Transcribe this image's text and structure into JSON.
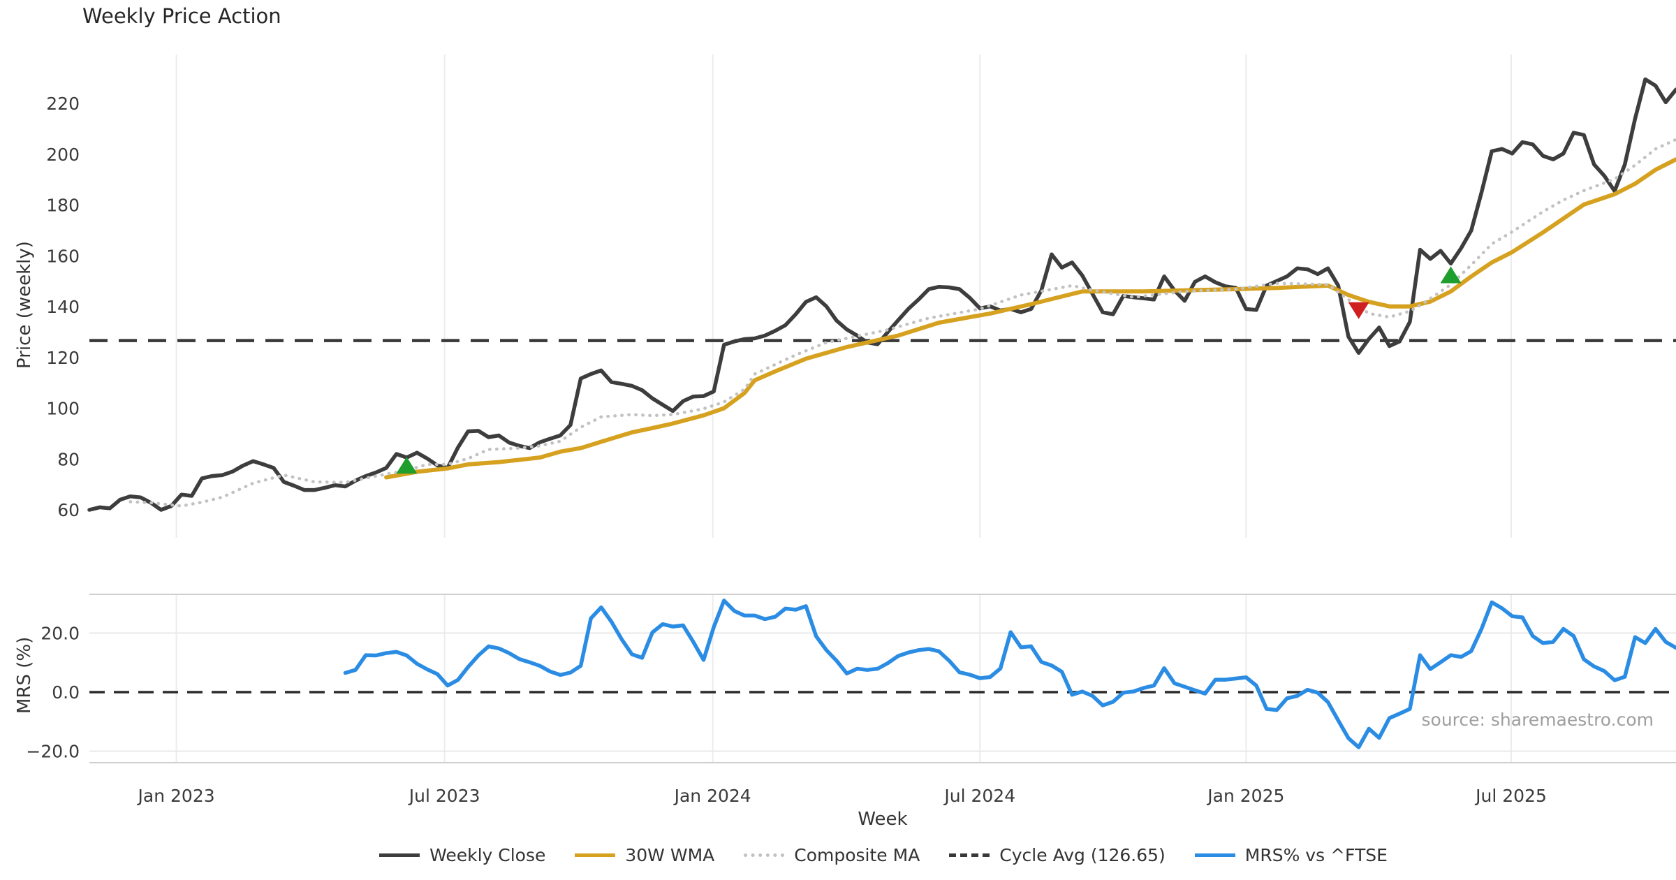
{
  "title": "Weekly Price Action",
  "source_note": "source: sharemaestro.com",
  "axes": {
    "price": {
      "ylabel": "Price (weekly)",
      "yticks": [
        60,
        80,
        100,
        120,
        140,
        160,
        180,
        200,
        220
      ]
    },
    "mrs": {
      "ylabel": "MRS (%)",
      "ytick_labels": [
        "20.0",
        "0.0",
        "−20.0"
      ],
      "ytick_values": [
        20,
        0,
        -20
      ]
    },
    "xlabel": "Week",
    "xtick_labels": [
      "Jan 2023",
      "Jul 2023",
      "Jan 2024",
      "Jul 2024",
      "Jan 2025",
      "Jul 2025"
    ],
    "xtick_weeks": [
      8.5,
      34.7,
      60.9,
      87.0,
      113.0,
      138.9
    ]
  },
  "legend": {
    "items": [
      {
        "label": "Weekly Close",
        "color": "#3d3d3d",
        "style": "solid"
      },
      {
        "label": "30W WMA",
        "color": "#d6a11f",
        "style": "solid"
      },
      {
        "label": "Composite MA",
        "color": "#c2c2c2",
        "style": "dotted"
      },
      {
        "label": "Cycle Avg (126.65)",
        "color": "#383838",
        "style": "dashed"
      },
      {
        "label": "MRS% vs ^FTSE",
        "color": "#2b8ce4",
        "style": "solid"
      }
    ]
  },
  "chart_data": {
    "type": "line",
    "x_unit": "week index; week 0 = first plotted week (about Nov 2022); 26 weeks per half-year x tick",
    "xlim": [
      0,
      155
    ],
    "price_ylim": [
      49.0,
      239.3
    ],
    "mrs_ylim": [
      -23.9,
      33.1
    ],
    "cycle_avg": 126.65,
    "grid": "vertical gridlines at each half-year tick; mrs panel has light gridlines at +20 and -20 and a dashed zero line",
    "series": [
      {
        "name": "Weekly Close",
        "panel": "price",
        "color": "#3d3d3d",
        "style": "solid",
        "width": 5.5,
        "x_start": 0,
        "x_step": 1,
        "y": [
          60.0,
          61.0,
          60.6,
          64.0,
          65.3,
          64.9,
          62.8,
          60.0,
          61.5,
          66.0,
          65.5,
          72.4,
          73.3,
          73.7,
          75.1,
          77.4,
          79.2,
          77.9,
          76.5,
          71.0,
          69.5,
          67.8,
          67.8,
          68.7,
          69.7,
          69.2,
          71.5,
          73.3,
          74.7,
          76.5,
          82.0,
          80.6,
          82.5,
          80.2,
          77.5,
          76.5,
          84.5,
          90.9,
          91.1,
          88.6,
          89.3,
          86.5,
          85.2,
          84.3,
          86.6,
          88.0,
          89.3,
          93.4,
          111.7,
          113.5,
          114.9,
          110.3,
          109.6,
          108.8,
          107.1,
          103.9,
          101.4,
          98.9,
          102.8,
          104.6,
          104.8,
          106.6,
          125.0,
          126.3,
          127.2,
          127.5,
          128.6,
          130.5,
          132.7,
          137.0,
          141.9,
          143.7,
          140.1,
          134.5,
          131.0,
          128.6,
          125.9,
          125.2,
          130.0,
          134.6,
          139.1,
          142.8,
          146.9,
          147.8,
          147.6,
          146.9,
          143.5,
          139.3,
          140.1,
          138.5,
          139.1,
          137.8,
          139.1,
          146.4,
          160.6,
          155.4,
          157.4,
          152.3,
          145.0,
          137.8,
          137.0,
          144.2,
          143.7,
          143.3,
          142.8,
          151.9,
          146.4,
          142.3,
          149.8,
          151.9,
          149.6,
          148.0,
          147.4,
          139.1,
          138.7,
          148.3,
          150.1,
          151.9,
          155.1,
          154.7,
          152.8,
          155.1,
          148.3,
          128.2,
          121.8,
          127.3,
          131.8,
          124.5,
          126.3,
          134.0,
          162.4,
          158.8,
          162.0,
          157.0,
          163.0,
          170.0,
          185.0,
          201.2,
          202.1,
          200.3,
          204.8,
          203.9,
          199.4,
          198.0,
          200.3,
          208.5,
          207.6,
          196.0,
          191.5,
          185.5,
          196.0,
          214.0,
          229.5,
          227.0,
          220.5,
          225.5
        ]
      },
      {
        "name": "30W WMA",
        "panel": "price",
        "color": "#d6a11f",
        "style": "solid",
        "width": 6,
        "x": [
          29,
          32,
          35,
          37,
          40,
          44,
          46,
          48,
          50,
          53,
          55,
          57,
          60,
          62,
          64,
          65,
          67,
          70,
          74,
          79,
          83,
          88,
          92,
          97,
          103,
          107,
          112,
          116,
          121,
          123,
          125,
          127,
          129,
          131,
          133,
          135,
          137,
          139,
          142,
          144,
          146,
          149,
          151,
          153,
          155
        ],
        "y": [
          72.8,
          75.0,
          76.3,
          77.9,
          78.8,
          80.6,
          82.9,
          84.3,
          86.8,
          90.5,
          92.2,
          94.0,
          97.2,
          100.0,
          106.0,
          111.0,
          114.5,
          119.5,
          124.1,
          128.6,
          133.7,
          137.3,
          141.0,
          146.0,
          146.0,
          146.4,
          146.9,
          147.4,
          148.3,
          144.6,
          141.9,
          140.1,
          140.1,
          142.0,
          146.0,
          151.9,
          157.4,
          161.5,
          169.2,
          174.7,
          180.2,
          184.3,
          188.4,
          193.9,
          198.0
        ]
      },
      {
        "name": "Composite MA",
        "panel": "price",
        "color": "#c2c2c2",
        "style": "dotted",
        "width": 4.5,
        "x": [
          4,
          6,
          9,
          11,
          13,
          16,
          19,
          22,
          25,
          28,
          31,
          33,
          35,
          37,
          39,
          42,
          44,
          46,
          48,
          50,
          53,
          55,
          57,
          60,
          62,
          64,
          65,
          69,
          72,
          78,
          82,
          87,
          91,
          96,
          98,
          102,
          107,
          112,
          116,
          121,
          123,
          125,
          127,
          129,
          130,
          133,
          135,
          137,
          139,
          142,
          144,
          146,
          149,
          151,
          153,
          155
        ],
        "y": [
          63.2,
          62.8,
          61.5,
          63.0,
          65.0,
          70.5,
          73.7,
          71.0,
          70.8,
          73.3,
          75.5,
          77.9,
          77.9,
          80.2,
          83.8,
          84.3,
          85.2,
          87.0,
          92.5,
          96.6,
          97.5,
          97.1,
          97.5,
          99.8,
          102.5,
          107.5,
          113.5,
          121.0,
          125.9,
          130.9,
          135.5,
          139.1,
          144.6,
          148.3,
          146.5,
          143.7,
          146.0,
          146.9,
          149.2,
          148.7,
          142.8,
          137.3,
          135.9,
          138.2,
          140.5,
          148.7,
          156.4,
          164.7,
          169.5,
          177.4,
          182.0,
          185.7,
          190.2,
          195.7,
          202.1,
          205.8
        ]
      },
      {
        "name": "MRS% vs ^FTSE",
        "panel": "mrs",
        "color": "#2b8ce4",
        "style": "solid",
        "width": 5.5,
        "x_start": 25,
        "x_step": 1,
        "y": [
          6.5,
          7.5,
          12.5,
          12.4,
          13.2,
          13.6,
          12.4,
          9.6,
          7.7,
          6.1,
          2.2,
          4.1,
          8.5,
          12.4,
          15.5,
          14.8,
          13.2,
          11.2,
          10.1,
          8.9,
          7.0,
          5.8,
          6.6,
          8.9,
          25.0,
          28.7,
          23.8,
          17.9,
          12.8,
          11.6,
          20.2,
          23.0,
          22.2,
          22.6,
          17.0,
          10.9,
          22.0,
          31.0,
          27.5,
          25.9,
          25.9,
          24.7,
          25.5,
          28.3,
          27.9,
          29.1,
          18.9,
          14.2,
          10.6,
          6.3,
          7.9,
          7.5,
          7.9,
          9.8,
          12.2,
          13.4,
          14.2,
          14.6,
          13.8,
          10.6,
          6.7,
          5.9,
          4.7,
          5.1,
          8.0,
          20.3,
          15.2,
          15.5,
          10.2,
          9.0,
          6.9,
          -0.9,
          0.2,
          -1.3,
          -4.5,
          -3.3,
          -0.2,
          0.2,
          1.4,
          2.2,
          8.1,
          3.0,
          1.8,
          0.6,
          -0.5,
          4.2,
          4.2,
          4.6,
          5.0,
          2.2,
          -5.7,
          -6.1,
          -2.1,
          -1.3,
          0.8,
          -0.2,
          -3.4,
          -9.6,
          -15.6,
          -18.7,
          -12.4,
          -15.5,
          -8.8,
          -7.3,
          -5.7,
          12.5,
          7.8,
          10.1,
          12.5,
          11.9,
          13.9,
          21.4,
          30.4,
          28.4,
          25.7,
          25.3,
          19.0,
          16.6,
          17.0,
          21.4,
          19.0,
          11.1,
          8.7,
          7.1,
          4.0,
          5.2,
          18.6,
          16.6,
          21.4,
          17.0,
          15.0
        ]
      }
    ],
    "markers": [
      {
        "type": "buy-triangle-up",
        "color": "#1e9e2d",
        "week": 31,
        "value": 77
      },
      {
        "type": "sell-triangle-down",
        "color": "#d01f1f",
        "week": 124,
        "value": 139
      },
      {
        "type": "buy-triangle-up",
        "color": "#1e9e2d",
        "week": 133,
        "value": 152
      }
    ]
  }
}
